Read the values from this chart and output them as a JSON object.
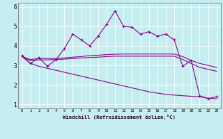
{
  "xlabel": "Windchill (Refroidissement éolien,°C)",
  "bg_color": "#c6eef0",
  "line_color": "#880088",
  "xlim": [
    -0.5,
    23.5
  ],
  "ylim": [
    0.8,
    6.2
  ],
  "xticks": [
    0,
    1,
    2,
    3,
    4,
    5,
    6,
    7,
    8,
    9,
    10,
    11,
    12,
    13,
    14,
    15,
    16,
    17,
    18,
    19,
    20,
    21,
    22,
    23
  ],
  "yticks": [
    1,
    2,
    3,
    4,
    5,
    6
  ],
  "hours": [
    0,
    1,
    2,
    3,
    4,
    5,
    6,
    7,
    8,
    9,
    10,
    11,
    12,
    13,
    14,
    15,
    16,
    17,
    18,
    19,
    20,
    21,
    22,
    23
  ],
  "line1": [
    3.5,
    3.1,
    3.4,
    2.95,
    3.3,
    3.85,
    4.6,
    4.3,
    4.0,
    4.5,
    5.1,
    5.78,
    5.0,
    4.95,
    4.6,
    4.72,
    4.5,
    4.6,
    4.3,
    2.95,
    3.25,
    1.45,
    1.3,
    1.4
  ],
  "line2": [
    3.45,
    3.3,
    3.35,
    3.35,
    3.35,
    3.38,
    3.42,
    3.45,
    3.5,
    3.52,
    3.55,
    3.57,
    3.58,
    3.58,
    3.58,
    3.58,
    3.58,
    3.58,
    3.58,
    3.45,
    3.25,
    3.1,
    3.0,
    2.9
  ],
  "line3": [
    3.45,
    3.25,
    3.28,
    3.28,
    3.3,
    3.32,
    3.35,
    3.38,
    3.4,
    3.42,
    3.45,
    3.47,
    3.47,
    3.47,
    3.47,
    3.47,
    3.47,
    3.47,
    3.47,
    3.3,
    3.1,
    2.9,
    2.8,
    2.7
  ],
  "line4": [
    3.45,
    3.1,
    2.95,
    2.85,
    2.75,
    2.65,
    2.55,
    2.45,
    2.35,
    2.25,
    2.15,
    2.05,
    1.95,
    1.85,
    1.75,
    1.65,
    1.58,
    1.52,
    1.48,
    1.45,
    1.42,
    1.4,
    1.32,
    1.3
  ]
}
